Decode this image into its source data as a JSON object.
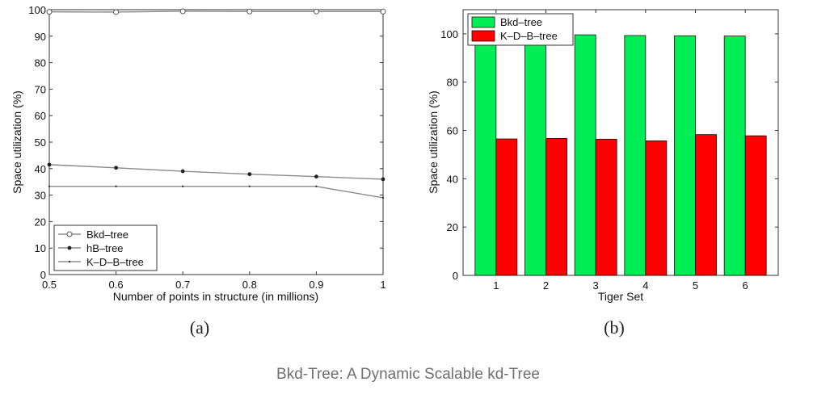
{
  "caption": "Bkd-Tree: A Dynamic Scalable kd-Tree",
  "chart_data": [
    {
      "type": "line",
      "panel_label": "(a)",
      "xlabel": "Number of points in structure (in millions)",
      "ylabel": "Space utilization (%)",
      "xlim": [
        0.5,
        1
      ],
      "ylim": [
        0,
        100
      ],
      "x_ticks": [
        "0.5",
        "0.6",
        "0.7",
        "0.8",
        "0.9",
        "1"
      ],
      "y_ticks": [
        "0",
        "10",
        "20",
        "30",
        "40",
        "50",
        "60",
        "70",
        "80",
        "90",
        "100"
      ],
      "x": [
        0.5,
        0.6,
        0.7,
        0.8,
        0.9,
        1.0
      ],
      "series": [
        {
          "name": "Bkd–tree",
          "marker": "circle",
          "values": [
            99.2,
            99.1,
            99.4,
            99.3,
            99.3,
            99.3
          ]
        },
        {
          "name": "hB–tree",
          "marker": "dot",
          "values": [
            41.5,
            40.3,
            39.0,
            37.9,
            37.0,
            36.0
          ]
        },
        {
          "name": "K–D–B–tree",
          "marker": "point",
          "values": [
            33.3,
            33.3,
            33.3,
            33.3,
            33.3,
            29.0
          ]
        }
      ],
      "legend_position": "bottom-left",
      "grid": false
    },
    {
      "type": "bar",
      "panel_label": "(b)",
      "xlabel": "Tiger Set",
      "ylabel": "Space utilization (%)",
      "ylim": [
        0,
        110
      ],
      "y_ticks": [
        "0",
        "20",
        "40",
        "60",
        "80",
        "100"
      ],
      "categories": [
        "1",
        "2",
        "3",
        "4",
        "5",
        "6"
      ],
      "series": [
        {
          "name": "Bkd–tree",
          "color": "#00ee55",
          "values": [
            99.3,
            99.2,
            99.6,
            99.3,
            99.2,
            99.1
          ]
        },
        {
          "name": "K–D–B–tree",
          "color": "#ff0000",
          "values": [
            56.5,
            56.7,
            56.4,
            55.7,
            58.3,
            57.8
          ]
        }
      ],
      "legend_position": "top-left",
      "grid": false
    }
  ]
}
